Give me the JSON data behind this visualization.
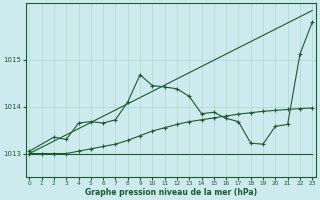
{
  "title": "Graphe pression niveau de la mer (hPa)",
  "background_color": "#cdeaee",
  "grid_color": "#b0d8cc",
  "line_color": "#1a5c2a",
  "x_ticks": [
    0,
    1,
    2,
    3,
    4,
    5,
    6,
    7,
    8,
    9,
    10,
    11,
    12,
    13,
    14,
    15,
    16,
    17,
    18,
    19,
    20,
    21,
    22,
    23
  ],
  "ylim": [
    1012.5,
    1016.2
  ],
  "yticks": [
    1013,
    1014,
    1015
  ],
  "series1_x": [
    0,
    1,
    2,
    3,
    4,
    5,
    6,
    7,
    8,
    9,
    10,
    11,
    12,
    13,
    14,
    15,
    16,
    17,
    18,
    19,
    20,
    21,
    22,
    23
  ],
  "series1_y": [
    1013.0,
    1013.0,
    1013.0,
    1013.0,
    1013.0,
    1013.0,
    1013.0,
    1013.0,
    1013.0,
    1013.0,
    1013.0,
    1013.0,
    1013.0,
    1013.0,
    1013.0,
    1013.0,
    1013.0,
    1013.0,
    1013.0,
    1013.0,
    1013.0,
    1013.0,
    1013.0,
    1013.0
  ],
  "series2_x": [
    0,
    23
  ],
  "series2_y": [
    1013.0,
    1016.05
  ],
  "series3_x": [
    0,
    2,
    3,
    4,
    5,
    6,
    7,
    8,
    9,
    10,
    11,
    12,
    13,
    14,
    15,
    16,
    17,
    18,
    19,
    20,
    21,
    22,
    23
  ],
  "series3_y": [
    1013.05,
    1013.35,
    1013.3,
    1013.65,
    1013.68,
    1013.65,
    1013.72,
    1014.1,
    1014.68,
    1014.45,
    1014.42,
    1014.38,
    1014.22,
    1013.85,
    1013.88,
    1013.75,
    1013.68,
    1013.22,
    1013.2,
    1013.58,
    1013.62,
    1015.12,
    1015.8
  ],
  "series4_x": [
    0,
    1,
    2,
    3,
    4,
    5,
    6,
    7,
    8,
    9,
    10,
    11,
    12,
    13,
    14,
    15,
    16,
    17,
    18,
    19,
    20,
    21,
    22,
    23
  ],
  "series4_y": [
    1013.0,
    1013.0,
    1013.0,
    1013.0,
    1013.05,
    1013.1,
    1013.15,
    1013.2,
    1013.28,
    1013.38,
    1013.48,
    1013.55,
    1013.62,
    1013.68,
    1013.72,
    1013.76,
    1013.8,
    1013.84,
    1013.87,
    1013.9,
    1013.92,
    1013.94,
    1013.96,
    1013.97
  ]
}
